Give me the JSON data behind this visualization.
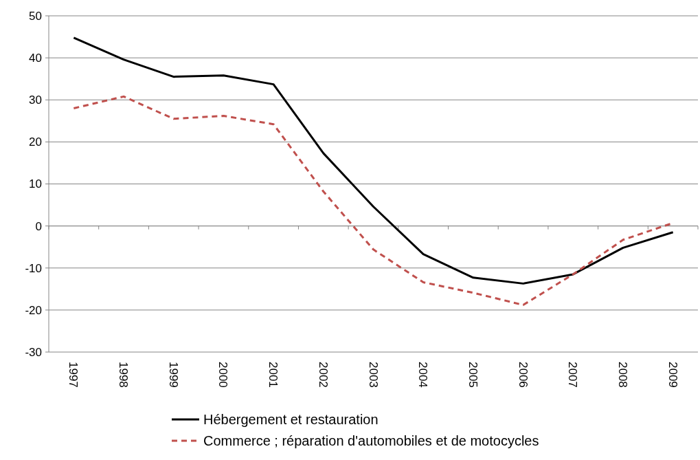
{
  "chart_data": {
    "type": "line",
    "categories": [
      "1997",
      "1998",
      "1999",
      "2000",
      "2001",
      "2002",
      "2003",
      "2004",
      "2005",
      "2006",
      "2007",
      "2008",
      "2009"
    ],
    "series": [
      {
        "name": "Hébergement et restauration",
        "color": "#000000",
        "line_style": "solid",
        "values": [
          44.8,
          39.6,
          35.5,
          35.8,
          33.7,
          17.3,
          4.6,
          -6.7,
          -12.3,
          -13.7,
          -11.5,
          -5.2,
          -1.5
        ]
      },
      {
        "name": "Commerce ; réparation d'automobiles et de motocycles",
        "color": "#c0504d",
        "line_style": "dashed",
        "values": [
          28.0,
          30.8,
          25.5,
          26.2,
          24.2,
          8.2,
          -5.6,
          -13.4,
          -15.9,
          -18.8,
          -11.5,
          -3.3,
          0.7
        ]
      }
    ],
    "ylim": [
      -30,
      50
    ],
    "yticks": [
      -30,
      -20,
      -10,
      0,
      10,
      20,
      30,
      40,
      50
    ],
    "grid": "y",
    "legend": "bottom",
    "marker": "none"
  }
}
